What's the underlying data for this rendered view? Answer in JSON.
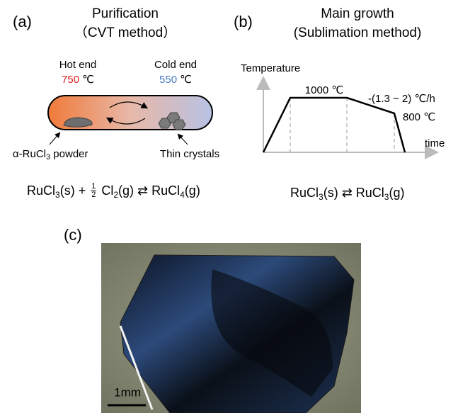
{
  "panel_a": {
    "label": "(a)",
    "title": "Purification",
    "subtitle": "（CVT method）",
    "hot_end": {
      "label": "Hot end",
      "temperature": "750",
      "unit": "℃"
    },
    "cold_end": {
      "label": "Cold end",
      "temperature": "550",
      "unit": "℃"
    },
    "powder_label": [
      "α-RuCl",
      "3",
      " powder"
    ],
    "crystals_label": "Thin crystals",
    "equation": [
      "RuCl",
      "3",
      "(s) + ",
      "1",
      "2",
      " Cl",
      "2",
      "(g) ⇄ RuCl",
      "4",
      "(g)"
    ]
  },
  "panel_b": {
    "label": "(b)",
    "title": "Main growth",
    "subtitle": "(Sublimation method)",
    "y_label": "Temperature",
    "x_label": "time",
    "plateau": "1000 ℃",
    "cooling_rate": "-(1.3 ~ 2) ℃/h",
    "end": "800 ℃",
    "equation": [
      "RuCl",
      "3",
      "(s) ⇄ RuCl",
      "3",
      "(g)"
    ]
  },
  "panel_c": {
    "label": "(c)",
    "scale_bar": "1mm"
  }
}
